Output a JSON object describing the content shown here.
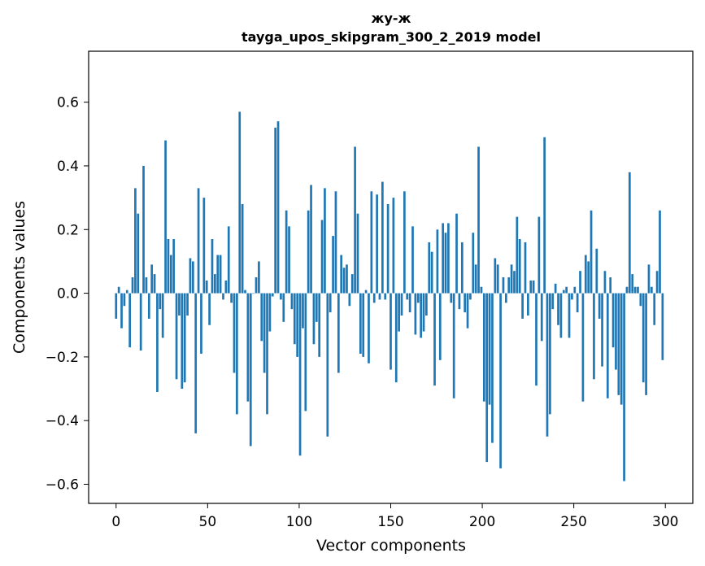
{
  "chart_data": {
    "type": "bar",
    "title_line1": "жу-ж",
    "title_line2": "tayga_upos_skipgram_300_2_2019 model",
    "xlabel": "Vector components",
    "ylabel": "Components values",
    "xlim": [
      -15,
      315
    ],
    "ylim": [
      -0.66,
      0.76
    ],
    "xticks": [
      0,
      50,
      100,
      150,
      200,
      250,
      300
    ],
    "xtick_labels": [
      "0",
      "50",
      "100",
      "150",
      "200",
      "250",
      "300"
    ],
    "yticks": [
      -0.6,
      -0.4,
      -0.2,
      0.0,
      0.2,
      0.4,
      0.6
    ],
    "ytick_labels": [
      "−0.6",
      "−0.4",
      "−0.2",
      "0.0",
      "0.2",
      "0.4",
      "0.6"
    ],
    "bar_color": "#1f77b4",
    "values": [
      -0.08,
      0.02,
      -0.11,
      -0.04,
      0.01,
      -0.17,
      0.05,
      0.33,
      0.25,
      -0.18,
      0.4,
      0.05,
      -0.08,
      0.09,
      0.06,
      -0.31,
      -0.05,
      -0.14,
      0.48,
      0.17,
      0.12,
      0.17,
      -0.27,
      -0.07,
      -0.3,
      -0.28,
      -0.07,
      0.11,
      0.1,
      -0.44,
      0.33,
      -0.19,
      0.3,
      0.04,
      -0.1,
      0.17,
      0.06,
      0.12,
      0.12,
      -0.02,
      0.04,
      0.21,
      -0.03,
      -0.25,
      -0.38,
      0.57,
      0.28,
      0.01,
      -0.34,
      -0.48,
      0.0,
      0.05,
      0.1,
      -0.15,
      -0.25,
      -0.38,
      -0.12,
      -0.01,
      0.52,
      0.54,
      -0.02,
      -0.09,
      0.26,
      0.21,
      -0.05,
      -0.16,
      -0.2,
      -0.51,
      -0.11,
      -0.37,
      0.26,
      0.34,
      -0.16,
      -0.09,
      -0.2,
      0.23,
      0.33,
      -0.45,
      -0.06,
      0.18,
      0.32,
      -0.25,
      0.12,
      0.08,
      0.09,
      -0.04,
      0.06,
      0.46,
      0.25,
      -0.19,
      -0.2,
      0.01,
      -0.22,
      0.32,
      -0.03,
      0.31,
      -0.02,
      0.35,
      -0.02,
      0.28,
      -0.24,
      0.3,
      -0.28,
      -0.12,
      -0.07,
      0.32,
      -0.02,
      -0.06,
      0.21,
      -0.13,
      -0.03,
      -0.14,
      -0.12,
      -0.07,
      0.16,
      0.13,
      -0.29,
      0.2,
      -0.21,
      0.22,
      0.19,
      0.22,
      -0.03,
      -0.33,
      0.25,
      -0.05,
      0.16,
      -0.06,
      -0.11,
      -0.02,
      0.19,
      0.09,
      0.46,
      0.02,
      -0.34,
      -0.53,
      -0.35,
      -0.47,
      0.11,
      0.09,
      -0.55,
      0.05,
      -0.03,
      0.05,
      0.09,
      0.07,
      0.24,
      0.17,
      -0.08,
      0.16,
      -0.07,
      0.04,
      0.04,
      -0.29,
      0.24,
      -0.15,
      0.49,
      -0.45,
      -0.38,
      -0.05,
      0.03,
      -0.1,
      -0.14,
      0.01,
      0.02,
      -0.14,
      -0.02,
      0.02,
      -0.06,
      0.07,
      -0.34,
      0.12,
      0.1,
      0.26,
      -0.27,
      0.14,
      -0.08,
      -0.23,
      0.07,
      -0.33,
      0.05,
      -0.17,
      -0.24,
      -0.32,
      -0.35,
      -0.59,
      0.02,
      0.38,
      0.06,
      0.02,
      0.02,
      -0.04,
      -0.28,
      -0.32,
      0.09,
      0.02,
      -0.1,
      0.07,
      0.26,
      -0.21
    ]
  }
}
